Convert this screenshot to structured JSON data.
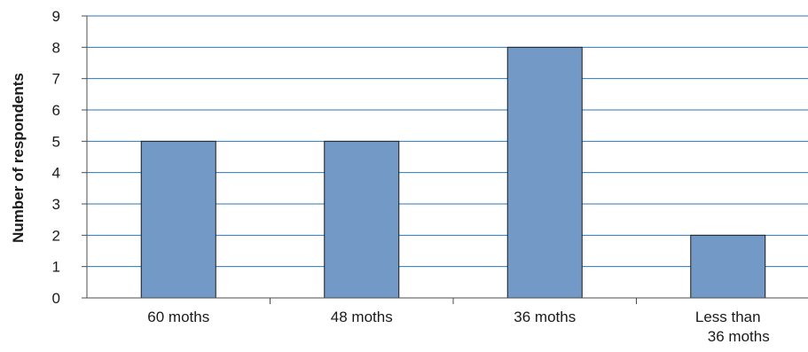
{
  "chart_data": {
    "type": "bar",
    "categories": [
      "60 moths",
      "48 moths",
      "36 moths",
      "Less than\n36 moths"
    ],
    "values": [
      5,
      5,
      8,
      2
    ],
    "title": "",
    "xlabel": "",
    "ylabel": "Number of respondents",
    "ylim": [
      0,
      9
    ],
    "yticks": [
      0,
      1,
      2,
      3,
      4,
      5,
      6,
      7,
      8,
      9
    ],
    "grid": true,
    "legend": "none",
    "colors": {
      "bar_fill": "#7399c6",
      "bar_stroke": "#1a1a1a",
      "grid": "#2e75b6",
      "axis": "#4d4d4d"
    }
  }
}
